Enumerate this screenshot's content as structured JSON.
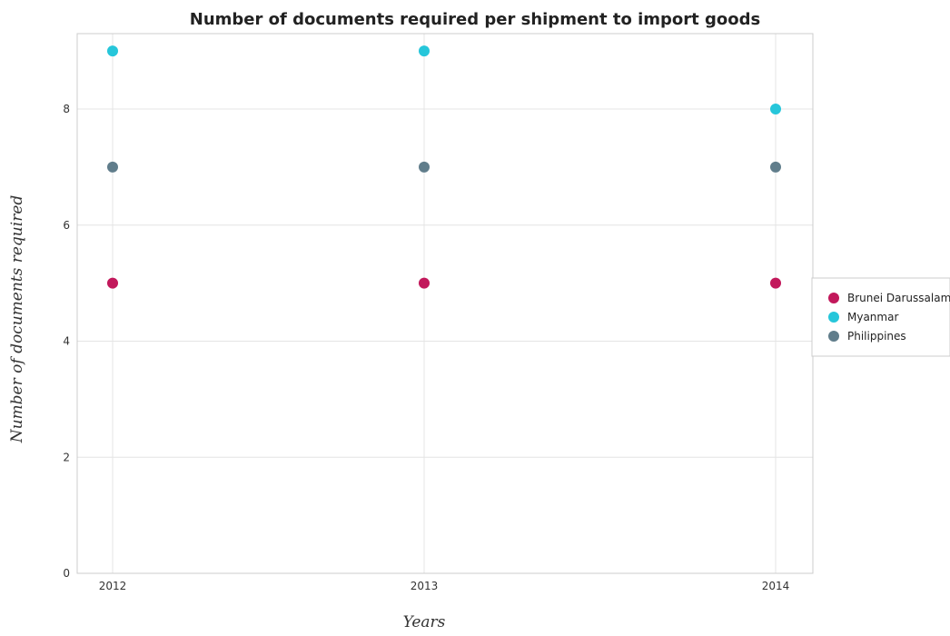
{
  "chart_data": {
    "type": "scatter",
    "title": "Number of documents required per shipment to import goods",
    "xlabel": "Years",
    "ylabel": "Number of documents required",
    "categories": [
      "2012",
      "2013",
      "2014"
    ],
    "ylim": [
      0,
      9.3
    ],
    "yticks": [
      0,
      2,
      4,
      6,
      8
    ],
    "grid": true,
    "legend_position": "right",
    "series": [
      {
        "name": "Brunei Darussalam",
        "color": "#c2185b",
        "values": [
          5,
          5,
          5
        ]
      },
      {
        "name": "Myanmar",
        "color": "#26c6da",
        "values": [
          9,
          9,
          8
        ]
      },
      {
        "name": "Philippines",
        "color": "#607d8b",
        "values": [
          7,
          7,
          7
        ]
      }
    ]
  }
}
